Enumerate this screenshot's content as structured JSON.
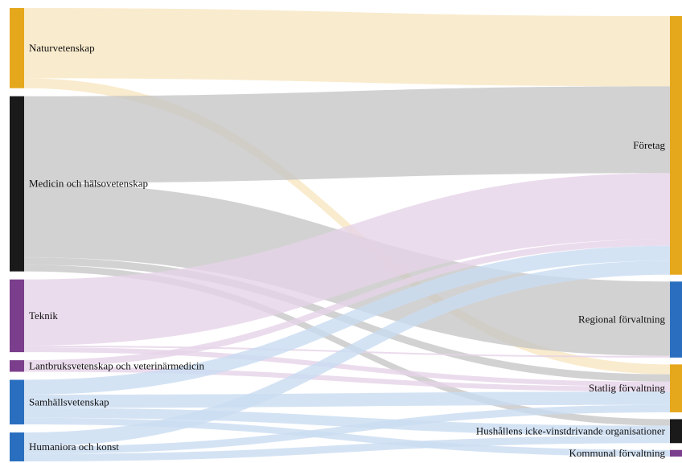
{
  "chart_data": {
    "type": "sankey",
    "title": "",
    "sources": [
      {
        "id": "nat",
        "label": "Naturvetenskap",
        "color": "#E5A71C"
      },
      {
        "id": "med",
        "label": "Medicin och hälsovetenskap",
        "color": "#1A1A1A"
      },
      {
        "id": "tek",
        "label": "Teknik",
        "color": "#7B3E8C"
      },
      {
        "id": "lant",
        "label": "Lantbruksvetenskap och veterinärmedicin",
        "color": "#7B3E8C"
      },
      {
        "id": "sam",
        "label": "Samhällsvetenskap",
        "color": "#2A6FBF"
      },
      {
        "id": "hum",
        "label": "Humaniora och konst",
        "color": "#2A6FBF"
      }
    ],
    "targets": [
      {
        "id": "for",
        "label": "Företag",
        "color": "#E5A71C"
      },
      {
        "id": "reg",
        "label": "Regional förvaltning",
        "color": "#2A6FBF"
      },
      {
        "id": "stat",
        "label": "Statlig förvaltning",
        "color": "#E5A71C"
      },
      {
        "id": "hush",
        "label": "Hushållens icke-vinstdrivande organisationer",
        "color": "#1A1A1A"
      },
      {
        "id": "kom",
        "label": "Kommunal förvaltning",
        "color": "#7B3E8C"
      }
    ],
    "links": [
      {
        "source": "nat",
        "target": "for",
        "value": 85,
        "color": "#F7E6C0"
      },
      {
        "source": "nat",
        "target": "stat",
        "value": 12,
        "color": "#F7E6C0"
      },
      {
        "source": "med",
        "target": "for",
        "value": 105,
        "color": "#C7C7C7"
      },
      {
        "source": "med",
        "target": "reg",
        "value": 90,
        "color": "#C7C7C7"
      },
      {
        "source": "med",
        "target": "stat",
        "value": 9,
        "color": "#C7C7C7"
      },
      {
        "source": "med",
        "target": "hush",
        "value": 8,
        "color": "#C7C7C7"
      },
      {
        "source": "tek",
        "target": "for",
        "value": 80,
        "color": "#E6D3E9"
      },
      {
        "source": "tek",
        "target": "stat",
        "value": 6,
        "color": "#E6D3E9"
      },
      {
        "source": "tek",
        "target": "reg",
        "value": 2,
        "color": "#E6D3E9"
      },
      {
        "source": "lant",
        "target": "for",
        "value": 8,
        "color": "#E6D3E9"
      },
      {
        "source": "lant",
        "target": "stat",
        "value": 6,
        "color": "#E6D3E9"
      },
      {
        "source": "sam",
        "target": "for",
        "value": 18,
        "color": "#C9DCF1"
      },
      {
        "source": "sam",
        "target": "stat",
        "value": 16,
        "color": "#C9DCF1"
      },
      {
        "source": "sam",
        "target": "hush",
        "value": 12,
        "color": "#C9DCF1"
      },
      {
        "source": "sam",
        "target": "kom",
        "value": 8,
        "color": "#C9DCF1"
      },
      {
        "source": "hum",
        "target": "for",
        "value": 17,
        "color": "#C9DCF1"
      },
      {
        "source": "hum",
        "target": "stat",
        "value": 9,
        "color": "#C9DCF1"
      },
      {
        "source": "hum",
        "target": "hush",
        "value": 9,
        "color": "#C9DCF1"
      }
    ]
  }
}
